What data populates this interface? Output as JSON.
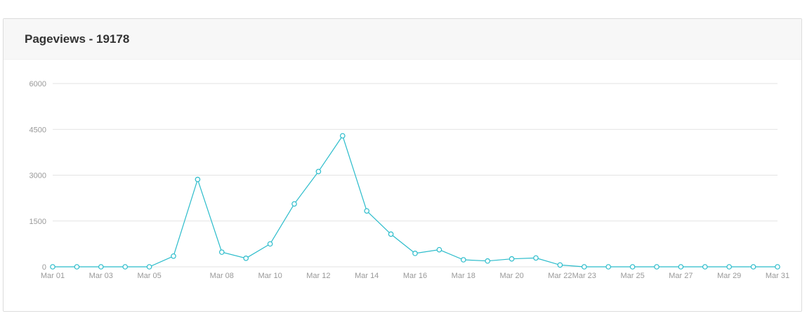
{
  "card": {
    "title": "Pageviews - 19178"
  },
  "colors": {
    "line": "#2bbccb",
    "grid": "#e3e3e3",
    "tick": "#999999"
  },
  "chart_data": {
    "type": "line",
    "title": "Pageviews - 19178",
    "xlabel": "",
    "ylabel": "",
    "ylim": [
      0,
      6000
    ],
    "yticks": [
      0,
      1500,
      3000,
      4500,
      6000
    ],
    "grid": true,
    "categories": [
      "Mar 01",
      "Mar 02",
      "Mar 03",
      "Mar 04",
      "Mar 05",
      "Mar 06",
      "Mar 07",
      "Mar 08",
      "Mar 09",
      "Mar 10",
      "Mar 11",
      "Mar 12",
      "Mar 13",
      "Mar 14",
      "Mar 15",
      "Mar 16",
      "Mar 17",
      "Mar 18",
      "Mar 19",
      "Mar 20",
      "Mar 21",
      "Mar 22",
      "Mar 23",
      "Mar 24",
      "Mar 25",
      "Mar 26",
      "Mar 27",
      "Mar 28",
      "Mar 29",
      "Mar 30",
      "Mar 31"
    ],
    "xticks": [
      "Mar 01",
      "Mar 03",
      "Mar 05",
      "Mar 08",
      "Mar 10",
      "Mar 12",
      "Mar 14",
      "Mar 16",
      "Mar 18",
      "Mar 20",
      "Mar 22",
      "Mar 23",
      "Mar 25",
      "Mar 27",
      "Mar 29",
      "Mar 31"
    ],
    "series": [
      {
        "values": [
          0,
          0,
          0,
          0,
          0,
          350,
          2860,
          480,
          280,
          750,
          2060,
          3120,
          4290,
          1830,
          1070,
          440,
          560,
          230,
          190,
          260,
          290,
          60,
          0,
          0,
          0,
          0,
          0,
          0,
          0,
          0,
          0
        ]
      }
    ]
  }
}
